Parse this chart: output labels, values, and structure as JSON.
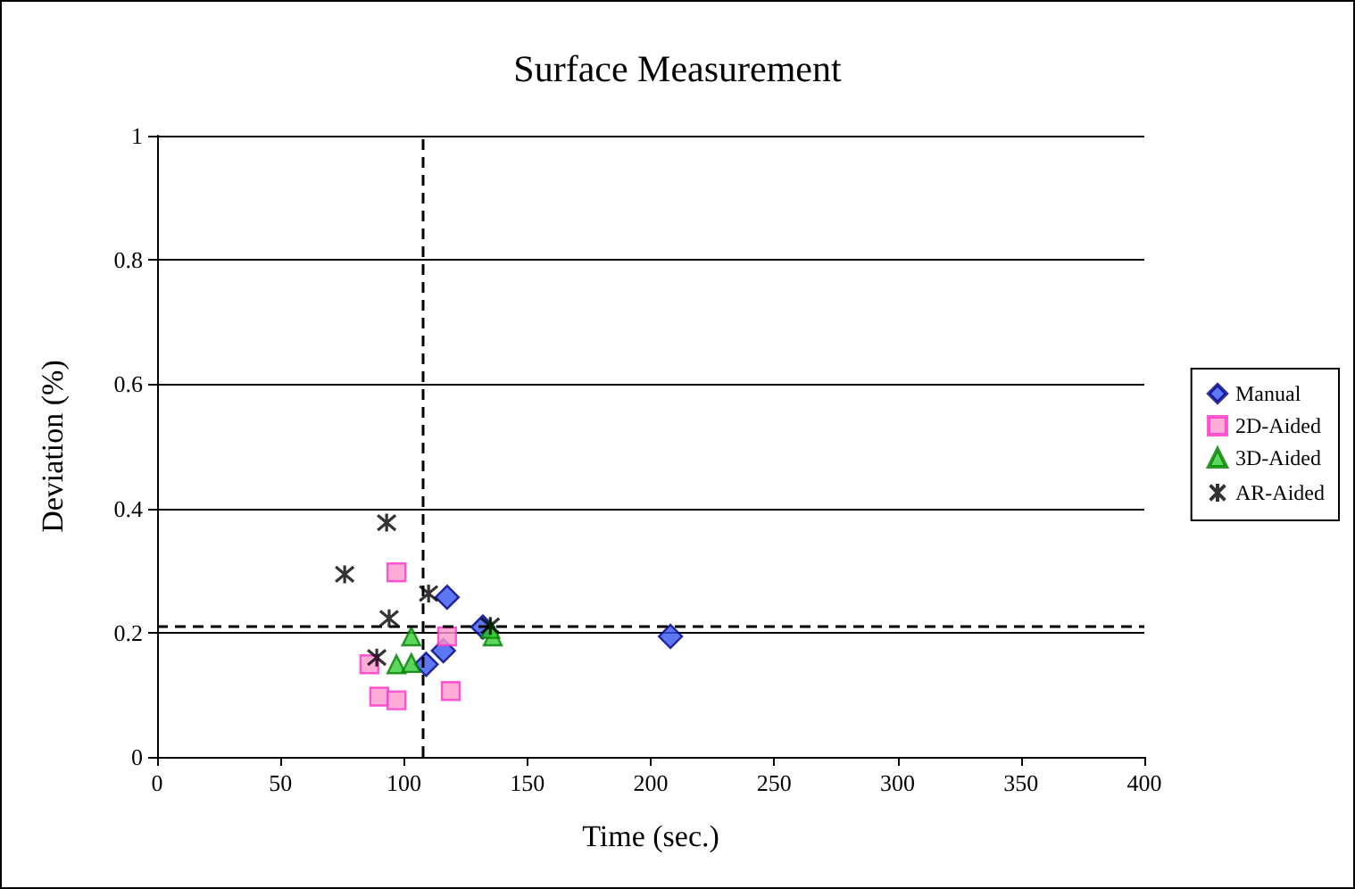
{
  "chart_data": {
    "type": "scatter",
    "title": "Surface Measurement",
    "xlabel": "Time (sec.)",
    "ylabel": "Deviation (%)",
    "xlim": [
      0,
      400
    ],
    "xticks": [
      0,
      50,
      100,
      150,
      200,
      250,
      300,
      350,
      400
    ],
    "ylim": [
      0,
      1
    ],
    "yticks": [
      0,
      0.2,
      0.4,
      0.6,
      0.8,
      1
    ],
    "grid": "y",
    "legend": "right",
    "series": [
      {
        "name": "Manual",
        "color": "#3355ee",
        "marker": "diamond",
        "x": [
          117.5,
          132,
          116,
          109,
          208
        ],
        "values": [
          0.257,
          0.209,
          0.171,
          0.149,
          0.194
        ]
      },
      {
        "name": "2D-Aided",
        "color": "#ff99cc",
        "marker": "square",
        "x": [
          97,
          117.5,
          86,
          90,
          97,
          119
        ],
        "values": [
          0.297,
          0.194,
          0.149,
          0.097,
          0.091,
          0.106
        ]
      },
      {
        "name": "3D-Aided",
        "color": "#33cc33",
        "marker": "triangle",
        "x": [
          103,
          97,
          103,
          136,
          135
        ],
        "values": [
          0.194,
          0.149,
          0.151,
          0.194,
          0.206
        ]
      },
      {
        "name": "AR-Aided",
        "color": "#000000",
        "marker": "cross",
        "x": [
          93,
          76,
          110,
          94,
          89,
          135
        ],
        "values": [
          0.377,
          0.294,
          0.263,
          0.223,
          0.16,
          0.211
        ]
      }
    ],
    "ref_lines": [
      {
        "axis": "x",
        "value": 107.5,
        "line_style": "dashed"
      },
      {
        "axis": "y",
        "value": 0.211,
        "line_style": "dashed"
      }
    ]
  }
}
